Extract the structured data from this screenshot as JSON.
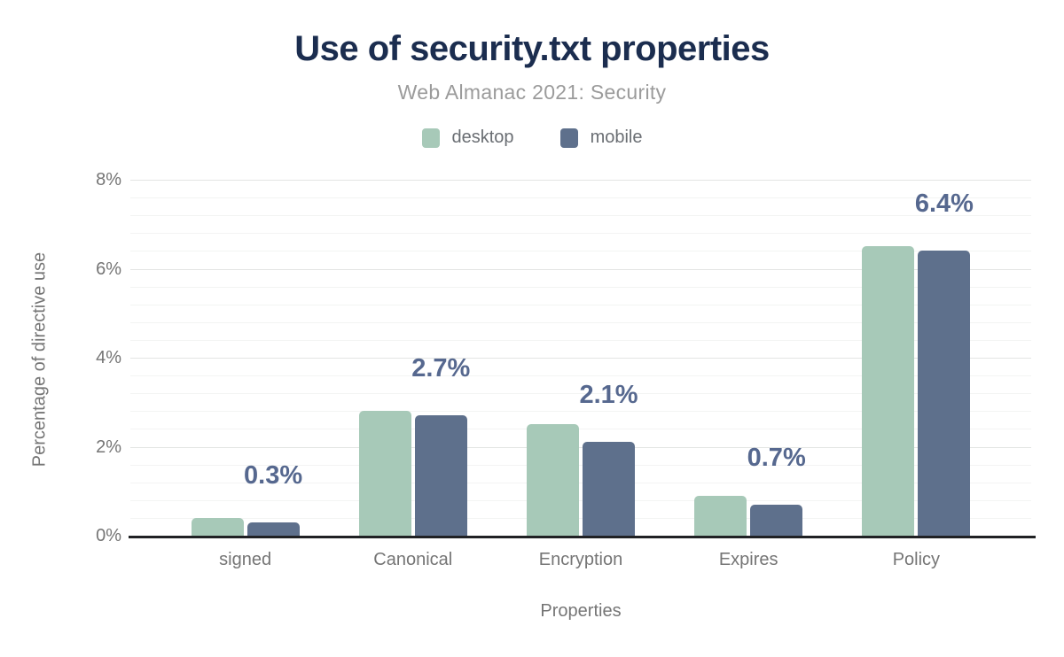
{
  "header": {
    "title": "Use of security.txt properties",
    "subtitle": "Web Almanac 2021: Security"
  },
  "legend": {
    "items": [
      {
        "label": "desktop",
        "color": "#a7c9b8"
      },
      {
        "label": "mobile",
        "color": "#5e708c"
      }
    ]
  },
  "chart_data": {
    "type": "bar",
    "title": "Use of security.txt properties",
    "subtitle": "Web Almanac 2021: Security",
    "categories": [
      "signed",
      "Canonical",
      "Encryption",
      "Expires",
      "Policy"
    ],
    "series": [
      {
        "name": "desktop",
        "color": "#a7c9b8",
        "values": [
          0.4,
          2.8,
          2.5,
          0.9,
          6.5
        ]
      },
      {
        "name": "mobile",
        "color": "#5e708c",
        "values": [
          0.3,
          2.7,
          2.1,
          0.7,
          6.4
        ]
      }
    ],
    "data_labels": {
      "series": "mobile",
      "values": [
        "0.3%",
        "2.7%",
        "2.1%",
        "0.7%",
        "6.4%"
      ]
    },
    "xlabel": "Properties",
    "ylabel": "Percentage of directive use",
    "ylim": [
      0,
      8
    ],
    "y_ticks": [
      {
        "value": 0,
        "label": "0%"
      },
      {
        "value": 2,
        "label": "2%"
      },
      {
        "value": 4,
        "label": "4%"
      },
      {
        "value": 6,
        "label": "6%"
      },
      {
        "value": 8,
        "label": "8%"
      }
    ],
    "grid": {
      "on": true,
      "major_step": 2,
      "minor_step": 0.4
    },
    "legend_position": "top",
    "colors": {
      "title": "#1b2d4f",
      "subtitle": "#9b9b9b",
      "axis_text": "#757575",
      "data_label": "#56688f",
      "axis_line": "#202124",
      "grid_major": "#e3e5e3",
      "grid_minor": "#f3f4f3",
      "background": "#ffffff"
    }
  }
}
